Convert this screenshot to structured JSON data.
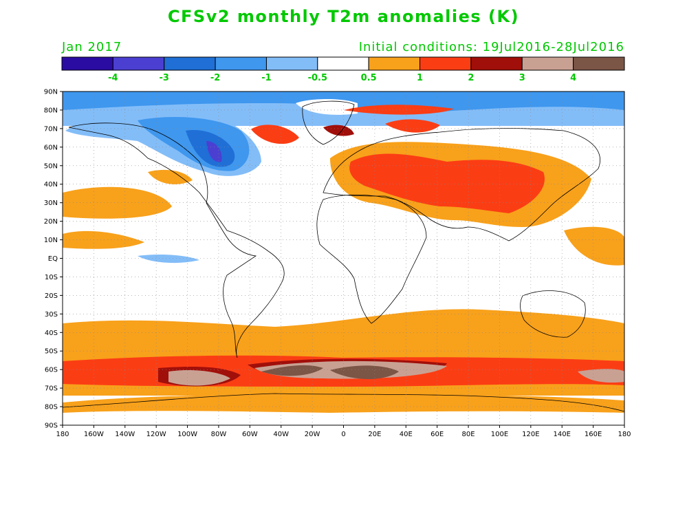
{
  "title": "CFSv2 monthly T2m anomalies (K)",
  "subtitle_left": "Jan 2017",
  "subtitle_right": "Initial conditions: 19Jul2016-28Jul2016",
  "legend": {
    "colors": [
      "#2b0ca3",
      "#4b3fd2",
      "#1f6fd6",
      "#3f97ee",
      "#83bdf8",
      "#ffffff",
      "#f8a11b",
      "#fb3d14",
      "#a10f0a",
      "#c9a193",
      "#7b5546"
    ],
    "labels": [
      "-4",
      "-3",
      "-2",
      "-1",
      "-0.5",
      "0.5",
      "1",
      "2",
      "3",
      "4"
    ]
  },
  "axes": {
    "lon_labels": [
      "180",
      "160W",
      "140W",
      "120W",
      "100W",
      "80W",
      "60W",
      "40W",
      "20W",
      "0",
      "20E",
      "40E",
      "60E",
      "80E",
      "100E",
      "120E",
      "140E",
      "160E",
      "180"
    ],
    "lat_labels": [
      "90N",
      "80N",
      "70N",
      "60N",
      "50N",
      "40N",
      "30N",
      "20N",
      "10N",
      "EQ",
      "10S",
      "20S",
      "30S",
      "40S",
      "50S",
      "60S",
      "70S",
      "80S",
      "90S"
    ]
  }
}
